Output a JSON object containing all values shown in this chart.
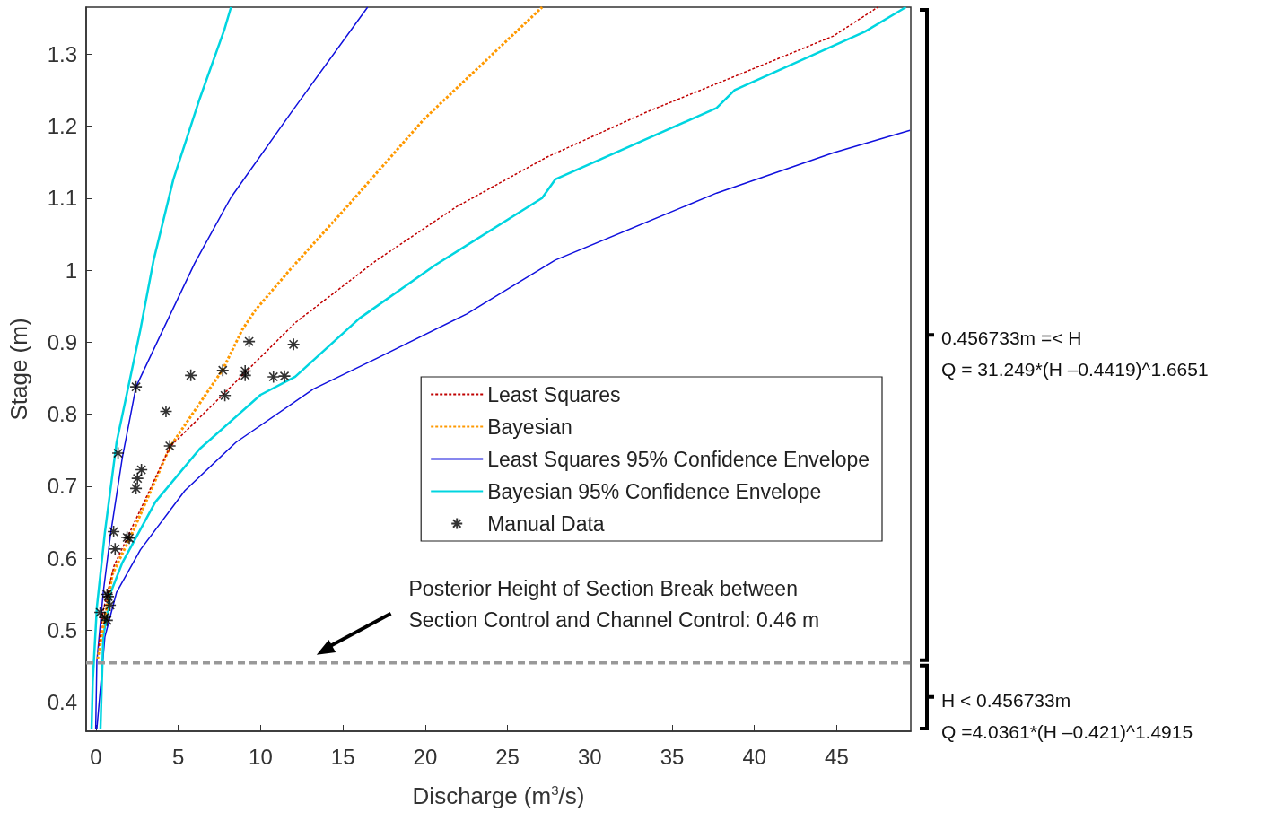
{
  "chart_data": {
    "type": "line",
    "xlabel": "Discharge (m$^{3}$/s)",
    "ylabel": "Stage (m)",
    "xlim": [
      -0.6,
      49.5
    ],
    "ylim": [
      0.36,
      1.365
    ],
    "xticks": [
      0,
      5,
      10,
      15,
      20,
      25,
      30,
      35,
      40,
      45
    ],
    "yticks": [
      0.4,
      0.5,
      0.6,
      0.7,
      0.8,
      0.9,
      1,
      1.1,
      1.2,
      1.3
    ],
    "grid": false,
    "legend": "right",
    "series": [
      {
        "name": "Least Squares",
        "color": "#c00000",
        "line_style": "dashed",
        "x": [
          0.16,
          0.44,
          1.1,
          4.5,
          7.7,
          12.1,
          17.0,
          21.9,
          27.4,
          33.4,
          38.8,
          44.8,
          47.5
        ],
        "values": [
          0.478,
          0.528,
          0.59,
          0.755,
          0.827,
          0.927,
          1.013,
          1.088,
          1.157,
          1.219,
          1.269,
          1.325,
          1.365
        ]
      },
      {
        "name": "Bayesian",
        "color": "#ff9900",
        "line_style": "dashed",
        "x": [
          0.1,
          1.0,
          2.3,
          4.5,
          7.7,
          8.9,
          9.7,
          11.8,
          15.4,
          19.9,
          24.1,
          27.1
        ],
        "values": [
          0.46,
          0.578,
          0.64,
          0.755,
          0.862,
          0.918,
          0.945,
          1.001,
          1.092,
          1.209,
          1.3,
          1.365
        ]
      },
      {
        "name": "Least Squares 95% Confidence Envelope",
        "color": "#1010dd",
        "line_style": "solid",
        "x": [
          -0.02,
          0.05,
          0.44,
          0.9,
          1.6,
          2.43,
          4.0,
          6.0,
          8.2,
          11.8,
          16.5
        ],
        "values": [
          0.363,
          0.457,
          0.553,
          0.636,
          0.74,
          0.838,
          0.914,
          1.01,
          1.101,
          1.217,
          1.365
        ]
      },
      {
        "color": "#1010dd",
        "line_style": "solid",
        "x": [
          0.05,
          0.54,
          1.25,
          2.7,
          5.4,
          8.5,
          13.2,
          17.0,
          22.5,
          27.9,
          37.7,
          44.8,
          49.45
        ],
        "values": [
          0.363,
          0.491,
          0.553,
          0.612,
          0.694,
          0.761,
          0.835,
          0.877,
          0.939,
          1.014,
          1.107,
          1.163,
          1.194
        ]
      },
      {
        "name": "Bayesian 95% Confidence Envelope",
        "color": "#00d5e0",
        "line_style": "solid",
        "x": [
          -0.27,
          -0.2,
          0.05,
          0.54,
          1.25,
          2.7,
          3.5,
          4.7,
          6.3,
          7.8,
          8.2
        ],
        "values": [
          0.363,
          0.429,
          0.532,
          0.636,
          0.761,
          0.918,
          1.014,
          1.126,
          1.238,
          1.334,
          1.365
        ]
      },
      {
        "color": "#00d5e0",
        "line_style": "solid",
        "x": [
          0.27,
          0.44,
          0.9,
          1.6,
          3.6,
          6.3,
          10.0,
          12.1,
          16.0,
          20.6,
          27.1,
          27.9,
          37.7,
          38.8,
          46.7,
          49.2
        ],
        "values": [
          0.363,
          0.491,
          0.553,
          0.594,
          0.678,
          0.752,
          0.827,
          0.852,
          0.933,
          1.007,
          1.1,
          1.126,
          1.225,
          1.25,
          1.331,
          1.365
        ]
      },
      {
        "name": "Manual Data",
        "type": "scatter",
        "color": "#000000",
        "marker": "cross",
        "x": [
          9.3,
          12.0,
          5.76,
          7.7,
          9.06,
          9.06,
          10.78,
          11.45,
          7.83,
          2.43,
          4.25,
          4.48,
          1.34,
          2.76,
          2.52,
          2.43,
          1.07,
          1.16,
          1.89,
          2.02,
          0.67,
          0.74,
          0.85,
          0.25,
          0.53,
          0.67
        ],
        "values": [
          0.901,
          0.897,
          0.854,
          0.861,
          0.86,
          0.854,
          0.852,
          0.853,
          0.826,
          0.838,
          0.804,
          0.756,
          0.746,
          0.723,
          0.711,
          0.697,
          0.637,
          0.613,
          0.629,
          0.628,
          0.55,
          0.547,
          0.535,
          0.525,
          0.518,
          0.514
        ]
      }
    ],
    "ref_lines": [
      {
        "axis": "y",
        "value": 0.455,
        "label": "Posterior Height of Section Break between\nSection Control and Channel Control: 0.46 m",
        "color": "#999999",
        "line_style": "dashed"
      }
    ],
    "annotations": [
      "0.456733m =< H\nQ = 31.249*(H –0.4419)^1.6651",
      "H < 0.456733m\nQ =4.0361*(H –0.421)^1.4915"
    ]
  }
}
